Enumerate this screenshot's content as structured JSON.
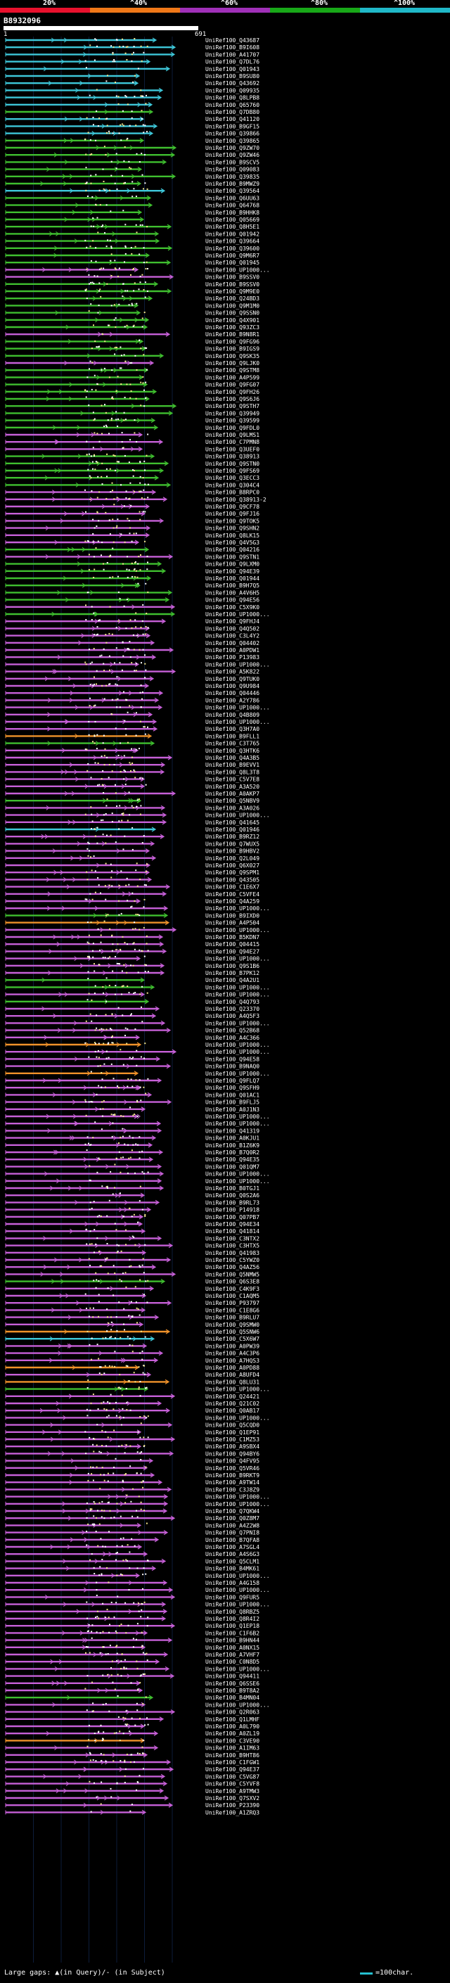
{
  "legend": [
    {
      "label": "20%",
      "color": "#e8112d"
    },
    {
      "label": "^40%",
      "color": "#f07818"
    },
    {
      "label": "^60%",
      "color": "#a030b8"
    },
    {
      "label": "^80%",
      "color": "#18a818"
    },
    {
      "label": "^100%",
      "color": "#20b8c8"
    }
  ],
  "query": {
    "id": "B8932096",
    "start": "1",
    "end": "691"
  },
  "hits": [
    {
      "id": "UniRef100_Q43687",
      "color": "cyan"
    },
    {
      "id": "UniRef100_B9I608",
      "color": "cyan"
    },
    {
      "id": "UniRef100_A41707",
      "color": "cyan"
    },
    {
      "id": "UniRef100_Q7DL76",
      "color": "cyan"
    },
    {
      "id": "UniRef100_Q01943",
      "color": "cyan"
    },
    {
      "id": "UniRef100_B9SU80",
      "color": "cyan"
    },
    {
      "id": "UniRef100_Q43692",
      "color": "cyan"
    },
    {
      "id": "UniRef100_Q09935",
      "color": "cyan"
    },
    {
      "id": "UniRef100_Q8LPB8",
      "color": "cyan"
    },
    {
      "id": "UniRef100_Q65760",
      "color": "cyan"
    },
    {
      "id": "UniRef100_Q7DB80",
      "color": "green"
    },
    {
      "id": "UniRef100_Q41120",
      "color": "cyan"
    },
    {
      "id": "UniRef100_B9GF15",
      "color": "cyan"
    },
    {
      "id": "UniRef100_Q39866",
      "color": "cyan"
    },
    {
      "id": "UniRef100_Q39865",
      "color": "green"
    },
    {
      "id": "UniRef100_Q9ZW70",
      "color": "green"
    },
    {
      "id": "UniRef100_Q9ZW46",
      "color": "green"
    },
    {
      "id": "UniRef100_B9SCV5",
      "color": "green"
    },
    {
      "id": "UniRef100_Q09083",
      "color": "green"
    },
    {
      "id": "UniRef100_Q39835",
      "color": "green"
    },
    {
      "id": "UniRef100_B9MWZ9",
      "color": "green"
    },
    {
      "id": "UniRef100_Q39564",
      "color": "cyan"
    },
    {
      "id": "UniRef100_Q6UU63",
      "color": "green"
    },
    {
      "id": "UniRef100_Q64768",
      "color": "green"
    },
    {
      "id": "UniRef100_B9HHK8",
      "color": "green"
    },
    {
      "id": "UniRef100_Q05669",
      "color": "green"
    },
    {
      "id": "UniRef100_Q8H5E1",
      "color": "green"
    },
    {
      "id": "UniRef100_Q01942",
      "color": "green"
    },
    {
      "id": "UniRef100_Q39664",
      "color": "green"
    },
    {
      "id": "UniRef100_Q39600",
      "color": "green"
    },
    {
      "id": "UniRef100_Q9M6R7",
      "color": "green"
    },
    {
      "id": "UniRef100_Q01945",
      "color": "green"
    },
    {
      "id": "UniRef100_UP1000...",
      "color": "magenta"
    },
    {
      "id": "UniRef100_B9SSV0",
      "color": "magenta"
    },
    {
      "id": "UniRef100_B9SSV0",
      "color": "green"
    },
    {
      "id": "UniRef100_Q9M9E0",
      "color": "green"
    },
    {
      "id": "UniRef100_Q24BD3",
      "color": "green"
    },
    {
      "id": "UniRef100_Q9M1M0",
      "color": "green"
    },
    {
      "id": "UniRef100_Q9SSN0",
      "color": "green"
    },
    {
      "id": "UniRef100_Q4X901",
      "color": "green"
    },
    {
      "id": "UniRef100_Q93ZC3",
      "color": "green"
    },
    {
      "id": "UniRef100_B9N8R1",
      "color": "magenta"
    },
    {
      "id": "UniRef100_Q9FG96",
      "color": "green"
    },
    {
      "id": "UniRef100_B9IGS9",
      "color": "green"
    },
    {
      "id": "UniRef100_Q9SK35",
      "color": "green"
    },
    {
      "id": "UniRef100_Q9LJK0",
      "color": "magenta"
    },
    {
      "id": "UniRef100_Q9STM8",
      "color": "green"
    },
    {
      "id": "UniRef100_A4P599",
      "color": "green"
    },
    {
      "id": "UniRef100_Q9FG07",
      "color": "green"
    },
    {
      "id": "UniRef100_Q9FH26",
      "color": "green"
    },
    {
      "id": "UniRef100_Q9S6J6",
      "color": "green"
    },
    {
      "id": "UniRef100_Q9STH7",
      "color": "green"
    },
    {
      "id": "UniRef100_Q39949",
      "color": "green"
    },
    {
      "id": "UniRef100_Q39599",
      "color": "green"
    },
    {
      "id": "UniRef100_Q9FDL0",
      "color": "green"
    },
    {
      "id": "UniRef100_Q9LMS1",
      "color": "magenta"
    },
    {
      "id": "UniRef100_C7PMN8",
      "color": "magenta"
    },
    {
      "id": "UniRef100_Q3UEF0",
      "color": "magenta"
    },
    {
      "id": "UniRef100_Q38913",
      "color": "green"
    },
    {
      "id": "UniRef100_Q9STN0",
      "color": "green"
    },
    {
      "id": "UniRef100_Q9FS69",
      "color": "green"
    },
    {
      "id": "UniRef100_Q3ECC3",
      "color": "green"
    },
    {
      "id": "UniRef100_Q304C4",
      "color": "green"
    },
    {
      "id": "UniRef100_B8RPC0",
      "color": "magenta"
    },
    {
      "id": "UniRef100_Q38913-2",
      "color": "magenta"
    },
    {
      "id": "UniRef100_Q9CF78",
      "color": "magenta"
    },
    {
      "id": "UniRef100_Q9FJ16",
      "color": "magenta"
    },
    {
      "id": "UniRef100_Q9TOK5",
      "color": "magenta"
    },
    {
      "id": "UniRef100_Q9SHN2",
      "color": "magenta"
    },
    {
      "id": "UniRef100_Q8LK15",
      "color": "magenta"
    },
    {
      "id": "UniRef100_Q4V5G3",
      "color": "magenta"
    },
    {
      "id": "UniRef100_Q04216",
      "color": "green"
    },
    {
      "id": "UniRef100_Q9STN1",
      "color": "magenta"
    },
    {
      "id": "UniRef100_Q9LXM0",
      "color": "green"
    },
    {
      "id": "UniRef100_Q94E39",
      "color": "green"
    },
    {
      "id": "UniRef100_Q01944",
      "color": "green"
    },
    {
      "id": "UniRef100_B9H7Q5",
      "color": "green"
    },
    {
      "id": "UniRef100_A4V6H5",
      "color": "green"
    },
    {
      "id": "UniRef100_Q94E56",
      "color": "green"
    },
    {
      "id": "UniRef100_C5X9K0",
      "color": "magenta"
    },
    {
      "id": "UniRef100_UP1000...",
      "color": "green"
    },
    {
      "id": "UniRef100_Q9FHJ4",
      "color": "magenta"
    },
    {
      "id": "UniRef100_Q4Q502",
      "color": "magenta"
    },
    {
      "id": "UniRef100_C3L4Y2",
      "color": "magenta"
    },
    {
      "id": "UniRef100_Q04402",
      "color": "magenta"
    },
    {
      "id": "UniRef100_A0PDW1",
      "color": "magenta"
    },
    {
      "id": "UniRef100_P13983",
      "color": "magenta"
    },
    {
      "id": "UniRef100_UP1000...",
      "color": "magenta"
    },
    {
      "id": "UniRef100_A5K822",
      "color": "magenta"
    },
    {
      "id": "UniRef100_Q9TUK0",
      "color": "magenta"
    },
    {
      "id": "UniRef100_Q9U984",
      "color": "magenta"
    },
    {
      "id": "UniRef100_Q04446",
      "color": "magenta"
    },
    {
      "id": "UniRef100_A2Y786",
      "color": "magenta"
    },
    {
      "id": "UniRef100_UP1000...",
      "color": "magenta"
    },
    {
      "id": "UniRef100_Q4B809",
      "color": "magenta"
    },
    {
      "id": "UniRef100_UP1000...",
      "color": "magenta"
    },
    {
      "id": "UniRef100_Q3H7A0",
      "color": "magenta"
    },
    {
      "id": "UniRef100_B9FLL1",
      "color": "orange"
    },
    {
      "id": "UniRef100_C3T765",
      "color": "green"
    },
    {
      "id": "UniRef100_Q3HTK6",
      "color": "magenta"
    },
    {
      "id": "UniRef100_Q4A3B5",
      "color": "magenta"
    },
    {
      "id": "UniRef100_B9EVV1",
      "color": "magenta"
    },
    {
      "id": "UniRef100_Q8L3T8",
      "color": "magenta"
    },
    {
      "id": "UniRef100_C5V7E8",
      "color": "magenta"
    },
    {
      "id": "UniRef100_A3A520",
      "color": "magenta"
    },
    {
      "id": "UniRef100_A0AKP7",
      "color": "magenta"
    },
    {
      "id": "UniRef100_Q5NBV9",
      "color": "green"
    },
    {
      "id": "UniRef100_A3A026",
      "color": "magenta"
    },
    {
      "id": "UniRef100_UP1000...",
      "color": "magenta"
    },
    {
      "id": "UniRef100_Q41645",
      "color": "magenta"
    },
    {
      "id": "UniRef100_Q01946",
      "color": "cyan"
    },
    {
      "id": "UniRef100_B9RZ12",
      "color": "magenta"
    },
    {
      "id": "UniRef100_Q7WUX5",
      "color": "magenta"
    },
    {
      "id": "UniRef100_B9HBV2",
      "color": "magenta"
    },
    {
      "id": "UniRef100_Q2L049",
      "color": "magenta"
    },
    {
      "id": "UniRef100_Q6X027",
      "color": "magenta"
    },
    {
      "id": "UniRef100_Q9SPM1",
      "color": "magenta"
    },
    {
      "id": "UniRef100_Q43505",
      "color": "magenta"
    },
    {
      "id": "UniRef100_C1E6X7",
      "color": "magenta"
    },
    {
      "id": "UniRef100_C5VFE4",
      "color": "magenta"
    },
    {
      "id": "UniRef100_Q4A259",
      "color": "magenta"
    },
    {
      "id": "UniRef100_UP1000...",
      "color": "magenta"
    },
    {
      "id": "UniRef100_B9IXD0",
      "color": "green"
    },
    {
      "id": "UniRef100_A4P504",
      "color": "orange"
    },
    {
      "id": "UniRef100_UP1000...",
      "color": "magenta"
    },
    {
      "id": "UniRef100_B5KDN7",
      "color": "magenta"
    },
    {
      "id": "UniRef100_Q04415",
      "color": "magenta"
    },
    {
      "id": "UniRef100_Q94E27",
      "color": "magenta"
    },
    {
      "id": "UniRef100_UP1000...",
      "color": "magenta"
    },
    {
      "id": "UniRef100_Q9S1B6",
      "color": "magenta"
    },
    {
      "id": "UniRef100_B7PK12",
      "color": "magenta"
    },
    {
      "id": "UniRef100_Q4A2U1",
      "color": "green"
    },
    {
      "id": "UniRef100_UP1000...",
      "color": "green"
    },
    {
      "id": "UniRef100_UP1000...",
      "color": "magenta"
    },
    {
      "id": "UniRef100_Q4Q793",
      "color": "green"
    },
    {
      "id": "UniRef100_Q23370",
      "color": "magenta"
    },
    {
      "id": "UniRef100_A4Q5F3",
      "color": "magenta"
    },
    {
      "id": "UniRef100_UP1000...",
      "color": "magenta"
    },
    {
      "id": "UniRef100_Q52B68",
      "color": "magenta"
    },
    {
      "id": "UniRef100_A4C366",
      "color": "magenta"
    },
    {
      "id": "UniRef100_UP1000...",
      "color": "orange"
    },
    {
      "id": "UniRef100_UP1000...",
      "color": "magenta"
    },
    {
      "id": "UniRef100_Q94E58",
      "color": "magenta"
    },
    {
      "id": "UniRef100_B9NAQ0",
      "color": "magenta"
    },
    {
      "id": "UniRef100_UP1000...",
      "color": "orange"
    },
    {
      "id": "UniRef100_Q9FLQ7",
      "color": "magenta"
    },
    {
      "id": "UniRef100_Q9SFH9",
      "color": "magenta"
    },
    {
      "id": "UniRef100_Q01AC1",
      "color": "magenta"
    },
    {
      "id": "UniRef100_B9FLJ5",
      "color": "magenta"
    },
    {
      "id": "UniRef100_A0J1N3",
      "color": "magenta"
    },
    {
      "id": "UniRef100_UP1000...",
      "color": "magenta"
    },
    {
      "id": "UniRef100_UP1000...",
      "color": "magenta"
    },
    {
      "id": "UniRef100_Q41319",
      "color": "magenta"
    },
    {
      "id": "UniRef100_A0KJU1",
      "color": "magenta"
    },
    {
      "id": "UniRef100_B1Z6K9",
      "color": "magenta"
    },
    {
      "id": "UniRef100_B7Q0R2",
      "color": "magenta"
    },
    {
      "id": "UniRef100_Q94E35",
      "color": "magenta"
    },
    {
      "id": "UniRef100_Q01QM7",
      "color": "magenta"
    },
    {
      "id": "UniRef100_UP1000...",
      "color": "magenta"
    },
    {
      "id": "UniRef100_UP1000...",
      "color": "magenta"
    },
    {
      "id": "UniRef100_B0TGJ1",
      "color": "magenta"
    },
    {
      "id": "UniRef100_Q0S2A6",
      "color": "magenta"
    },
    {
      "id": "UniRef100_B9RL73",
      "color": "magenta"
    },
    {
      "id": "UniRef100_P14918",
      "color": "magenta"
    },
    {
      "id": "UniRef100_Q07PB7",
      "color": "magenta"
    },
    {
      "id": "UniRef100_Q94E34",
      "color": "magenta"
    },
    {
      "id": "UniRef100_Q41814",
      "color": "magenta"
    },
    {
      "id": "UniRef100_C3NTX2",
      "color": "magenta"
    },
    {
      "id": "UniRef100_C3HTX5",
      "color": "magenta"
    },
    {
      "id": "UniRef100_Q41983",
      "color": "magenta"
    },
    {
      "id": "UniRef100_C5YWZ0",
      "color": "magenta"
    },
    {
      "id": "UniRef100_Q4AZ56",
      "color": "magenta"
    },
    {
      "id": "UniRef100_Q5NMW5",
      "color": "magenta"
    },
    {
      "id": "UniRef100_Q6S3E8",
      "color": "green"
    },
    {
      "id": "UniRef100_C4K9F3",
      "color": "magenta"
    },
    {
      "id": "UniRef100_C1AQM5",
      "color": "magenta"
    },
    {
      "id": "UniRef100_P93797",
      "color": "magenta"
    },
    {
      "id": "UniRef100_C1E8G6",
      "color": "magenta"
    },
    {
      "id": "UniRef100_B9RLU7",
      "color": "magenta"
    },
    {
      "id": "UniRef100_Q9SMW0",
      "color": "magenta"
    },
    {
      "id": "UniRef100_Q5SNW6",
      "color": "orange"
    },
    {
      "id": "UniRef100_C5X6W7",
      "color": "cyan"
    },
    {
      "id": "UniRef100_A0PW39",
      "color": "magenta"
    },
    {
      "id": "UniRef100_A4C3P6",
      "color": "magenta"
    },
    {
      "id": "UniRef100_A7HQS3",
      "color": "magenta"
    },
    {
      "id": "UniRef100_A0PD88",
      "color": "orange"
    },
    {
      "id": "UniRef100_A8UFD4",
      "color": "magenta"
    },
    {
      "id": "UniRef100_Q8LU31",
      "color": "orange"
    },
    {
      "id": "UniRef100_UP1000...",
      "color": "green"
    },
    {
      "id": "UniRef100_Q24421",
      "color": "magenta"
    },
    {
      "id": "UniRef100_Q21C02",
      "color": "magenta"
    },
    {
      "id": "UniRef100_Q0AB17",
      "color": "magenta"
    },
    {
      "id": "UniRef100_UP1000...",
      "color": "magenta"
    },
    {
      "id": "UniRef100_Q5CQD0",
      "color": "magenta"
    },
    {
      "id": "UniRef100_Q1EP91",
      "color": "magenta"
    },
    {
      "id": "UniRef100_C1MZ53",
      "color": "magenta"
    },
    {
      "id": "UniRef100_A9SBX4",
      "color": "magenta"
    },
    {
      "id": "UniRef100_Q94BY6",
      "color": "magenta"
    },
    {
      "id": "UniRef100_Q4FV95",
      "color": "magenta"
    },
    {
      "id": "UniRef100_Q5VR46",
      "color": "magenta"
    },
    {
      "id": "UniRef100_B9RKT9",
      "color": "magenta"
    },
    {
      "id": "UniRef100_A9TW14",
      "color": "magenta"
    },
    {
      "id": "UniRef100_C3J8Z9",
      "color": "magenta"
    },
    {
      "id": "UniRef100_UP1000...",
      "color": "magenta"
    },
    {
      "id": "UniRef100_UP1000...",
      "color": "magenta"
    },
    {
      "id": "UniRef100_Q7QKW4",
      "color": "magenta"
    },
    {
      "id": "UniRef100_Q0Z8M7",
      "color": "magenta"
    },
    {
      "id": "UniRef100_A4Z2W8",
      "color": "magenta"
    },
    {
      "id": "UniRef100_Q7PNI8",
      "color": "magenta"
    },
    {
      "id": "UniRef100_B7QFA8",
      "color": "magenta"
    },
    {
      "id": "UniRef100_A7SGL4",
      "color": "magenta"
    },
    {
      "id": "UniRef100_A4S6G3",
      "color": "magenta"
    },
    {
      "id": "UniRef100_Q5CLM1",
      "color": "magenta"
    },
    {
      "id": "UniRef100_B4MK61",
      "color": "magenta"
    },
    {
      "id": "UniRef100_UP1000...",
      "color": "magenta"
    },
    {
      "id": "UniRef100_A4G158",
      "color": "magenta"
    },
    {
      "id": "UniRef100_UP1000...",
      "color": "magenta"
    },
    {
      "id": "UniRef100_Q9FUR5",
      "color": "magenta"
    },
    {
      "id": "UniRef100_UP1000...",
      "color": "magenta"
    },
    {
      "id": "UniRef100_Q8RBZ5",
      "color": "magenta"
    },
    {
      "id": "UniRef100_Q8R4I2",
      "color": "magenta"
    },
    {
      "id": "UniRef100_Q1EP18",
      "color": "magenta"
    },
    {
      "id": "UniRef100_C1F6B2",
      "color": "magenta"
    },
    {
      "id": "UniRef100_B9HN44",
      "color": "magenta"
    },
    {
      "id": "UniRef100_A0NX15",
      "color": "magenta"
    },
    {
      "id": "UniRef100_A7VHF7",
      "color": "magenta"
    },
    {
      "id": "UniRef100_C0N8D5",
      "color": "magenta"
    },
    {
      "id": "UniRef100_UP1000...",
      "color": "magenta"
    },
    {
      "id": "UniRef100_Q94411",
      "color": "magenta"
    },
    {
      "id": "UniRef100_Q6SSE6",
      "color": "magenta"
    },
    {
      "id": "UniRef100_B9T8A2",
      "color": "magenta"
    },
    {
      "id": "UniRef100_B4MN04",
      "color": "green"
    },
    {
      "id": "UniRef100_UP1000...",
      "color": "magenta"
    },
    {
      "id": "UniRef100_Q2R063",
      "color": "magenta"
    },
    {
      "id": "UniRef100_Q1LMHF",
      "color": "magenta"
    },
    {
      "id": "UniRef100_A0L790",
      "color": "magenta"
    },
    {
      "id": "UniRef100_A0ZL19",
      "color": "magenta"
    },
    {
      "id": "UniRef100_C3VE90",
      "color": "orange"
    },
    {
      "id": "UniRef100_A1IM63",
      "color": "magenta"
    },
    {
      "id": "UniRef100_B9HT86",
      "color": "magenta"
    },
    {
      "id": "UniRef100_C1FGW1",
      "color": "magenta"
    },
    {
      "id": "UniRef100_Q94E37",
      "color": "magenta"
    },
    {
      "id": "UniRef100_C5VG87",
      "color": "magenta"
    },
    {
      "id": "UniRef100_C5YVF8",
      "color": "magenta"
    },
    {
      "id": "UniRef100_A9TMW3",
      "color": "magenta"
    },
    {
      "id": "UniRef100_Q7SXV2",
      "color": "magenta"
    },
    {
      "id": "UniRef100_P23390",
      "color": "magenta"
    },
    {
      "id": "UniRef100_A1ZRQ3",
      "color": "magenta"
    }
  ],
  "footer": {
    "gaps_text": "Large gaps: ▲(in Query)/- (in Subject)",
    "scale_text": "=100char."
  }
}
